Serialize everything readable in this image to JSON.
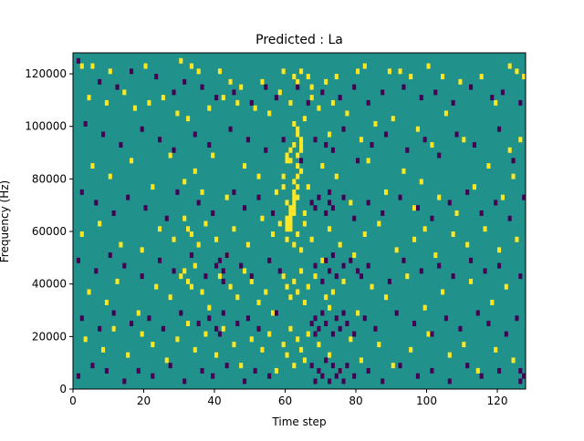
{
  "chart_data": {
    "type": "heatmap",
    "title": "Predicted : La",
    "xlabel": "Time step",
    "ylabel": "Frequency (Hz)",
    "xlim": [
      0,
      128
    ],
    "ylim": [
      0,
      128000
    ],
    "x_ticks": [
      0,
      20,
      40,
      60,
      80,
      100,
      120
    ],
    "y_ticks": [
      0,
      20000,
      40000,
      60000,
      80000,
      100000,
      120000
    ],
    "rows": 64,
    "cols": 128,
    "value_levels": [
      -1,
      0,
      1
    ],
    "colormap": {
      "-1": "#440154",
      "0": "#21918c",
      "1": "#fde725"
    },
    "background_value": 0,
    "note_cells": "cells listed as [time_step, row_index] where row 0 is the lowest frequency band",
    "positive_cells": [
      [
        2,
        61
      ],
      [
        5,
        61
      ],
      [
        10,
        60
      ],
      [
        20,
        61
      ],
      [
        30,
        62
      ],
      [
        33,
        61
      ],
      [
        35,
        60
      ],
      [
        41,
        60
      ],
      [
        44,
        58
      ],
      [
        47,
        57
      ],
      [
        53,
        58
      ],
      [
        59,
        60
      ],
      [
        62,
        59
      ],
      [
        63,
        58
      ],
      [
        64,
        60
      ],
      [
        66,
        59
      ],
      [
        67,
        57
      ],
      [
        71,
        58
      ],
      [
        74,
        59
      ],
      [
        80,
        60
      ],
      [
        82,
        61
      ],
      [
        89,
        60
      ],
      [
        92,
        60
      ],
      [
        95,
        59
      ],
      [
        100,
        61
      ],
      [
        104,
        59
      ],
      [
        109,
        58
      ],
      [
        115,
        59
      ],
      [
        123,
        61
      ],
      [
        125,
        60
      ],
      [
        127,
        59
      ],
      [
        4,
        55
      ],
      [
        9,
        54
      ],
      [
        14,
        56
      ],
      [
        17,
        53
      ],
      [
        21,
        54
      ],
      [
        25,
        55
      ],
      [
        29,
        52
      ],
      [
        32,
        51
      ],
      [
        38,
        53
      ],
      [
        42,
        55
      ],
      [
        46,
        54
      ],
      [
        51,
        53
      ],
      [
        55,
        52
      ],
      [
        58,
        56
      ],
      [
        61,
        54
      ],
      [
        62,
        50
      ],
      [
        63,
        49
      ],
      [
        65,
        51
      ],
      [
        67,
        55
      ],
      [
        69,
        53
      ],
      [
        72,
        48
      ],
      [
        73,
        54
      ],
      [
        77,
        52
      ],
      [
        81,
        47
      ],
      [
        85,
        50
      ],
      [
        90,
        51
      ],
      [
        97,
        49
      ],
      [
        101,
        46
      ],
      [
        105,
        52
      ],
      [
        110,
        47
      ],
      [
        119,
        54
      ],
      [
        123,
        45
      ],
      [
        126,
        47
      ],
      [
        5,
        42
      ],
      [
        10,
        40
      ],
      [
        16,
        43
      ],
      [
        22,
        38
      ],
      [
        27,
        44
      ],
      [
        31,
        39
      ],
      [
        34,
        41
      ],
      [
        36,
        37
      ],
      [
        39,
        44
      ],
      [
        43,
        36
      ],
      [
        48,
        42
      ],
      [
        52,
        40
      ],
      [
        57,
        37
      ],
      [
        60,
        35
      ],
      [
        61,
        43
      ],
      [
        62,
        39
      ],
      [
        63,
        36
      ],
      [
        64,
        41
      ],
      [
        65,
        33
      ],
      [
        66,
        38
      ],
      [
        70,
        42
      ],
      [
        74,
        40
      ],
      [
        78,
        35
      ],
      [
        83,
        43
      ],
      [
        88,
        37
      ],
      [
        93,
        41
      ],
      [
        96,
        34
      ],
      [
        98,
        39
      ],
      [
        103,
        36
      ],
      [
        108,
        33
      ],
      [
        113,
        38
      ],
      [
        117,
        42
      ],
      [
        121,
        36
      ],
      [
        124,
        40
      ],
      [
        2,
        29
      ],
      [
        7,
        31
      ],
      [
        13,
        27
      ],
      [
        19,
        26
      ],
      [
        24,
        30
      ],
      [
        28,
        28
      ],
      [
        31,
        32
      ],
      [
        32,
        30
      ],
      [
        33,
        29
      ],
      [
        35,
        27
      ],
      [
        37,
        31
      ],
      [
        40,
        28
      ],
      [
        43,
        25
      ],
      [
        45,
        30
      ],
      [
        49,
        27
      ],
      [
        53,
        32
      ],
      [
        56,
        29
      ],
      [
        58,
        31
      ],
      [
        60,
        28
      ],
      [
        61,
        30
      ],
      [
        62,
        27
      ],
      [
        63,
        29
      ],
      [
        64,
        26
      ],
      [
        65,
        31
      ],
      [
        67,
        28
      ],
      [
        70,
        24
      ],
      [
        72,
        30
      ],
      [
        75,
        27
      ],
      [
        79,
        25
      ],
      [
        82,
        29
      ],
      [
        86,
        31
      ],
      [
        91,
        26
      ],
      [
        96,
        28
      ],
      [
        99,
        30
      ],
      [
        102,
        25
      ],
      [
        107,
        29
      ],
      [
        111,
        27
      ],
      [
        116,
        30
      ],
      [
        120,
        26
      ],
      [
        125,
        28
      ],
      [
        4,
        18
      ],
      [
        9,
        16
      ],
      [
        12,
        20
      ],
      [
        18,
        14
      ],
      [
        23,
        19
      ],
      [
        27,
        17
      ],
      [
        30,
        21
      ],
      [
        31,
        22
      ],
      [
        32,
        20
      ],
      [
        33,
        19
      ],
      [
        34,
        23
      ],
      [
        36,
        18
      ],
      [
        38,
        15
      ],
      [
        41,
        21
      ],
      [
        44,
        19
      ],
      [
        46,
        17
      ],
      [
        48,
        22
      ],
      [
        50,
        20
      ],
      [
        52,
        16
      ],
      [
        54,
        18
      ],
      [
        56,
        14
      ],
      [
        59,
        21
      ],
      [
        60,
        19
      ],
      [
        61,
        17
      ],
      [
        62,
        20
      ],
      [
        63,
        18
      ],
      [
        64,
        22
      ],
      [
        65,
        16
      ],
      [
        66,
        19
      ],
      [
        68,
        21
      ],
      [
        71,
        17
      ],
      [
        72,
        15
      ],
      [
        73,
        18
      ],
      [
        76,
        20
      ],
      [
        80,
        14
      ],
      [
        84,
        19
      ],
      [
        88,
        17
      ],
      [
        94,
        21
      ],
      [
        99,
        15
      ],
      [
        104,
        18
      ],
      [
        112,
        20
      ],
      [
        118,
        16
      ],
      [
        122,
        19
      ],
      [
        3,
        9
      ],
      [
        8,
        7
      ],
      [
        11,
        11
      ],
      [
        15,
        6
      ],
      [
        19,
        10
      ],
      [
        22,
        8
      ],
      [
        26,
        5
      ],
      [
        29,
        9
      ],
      [
        32,
        12
      ],
      [
        34,
        7
      ],
      [
        37,
        10
      ],
      [
        40,
        6
      ],
      [
        42,
        11
      ],
      [
        45,
        8
      ],
      [
        47,
        4
      ],
      [
        50,
        9
      ],
      [
        53,
        7
      ],
      [
        55,
        10
      ],
      [
        57,
        3
      ],
      [
        59,
        8
      ],
      [
        60,
        6
      ],
      [
        61,
        11
      ],
      [
        62,
        4
      ],
      [
        63,
        9
      ],
      [
        64,
        7
      ],
      [
        65,
        5
      ],
      [
        66,
        10
      ],
      [
        69,
        8
      ],
      [
        72,
        6
      ],
      [
        75,
        3
      ],
      [
        78,
        9
      ],
      [
        81,
        5
      ],
      [
        86,
        8
      ],
      [
        90,
        4
      ],
      [
        95,
        7
      ],
      [
        100,
        10
      ],
      [
        106,
        6
      ],
      [
        110,
        8
      ],
      [
        114,
        3
      ],
      [
        119,
        7
      ],
      [
        124,
        5
      ],
      [
        60,
        30
      ],
      [
        60,
        31
      ],
      [
        60,
        32
      ],
      [
        61,
        31
      ],
      [
        61,
        32
      ],
      [
        61,
        33
      ],
      [
        61,
        34
      ],
      [
        62,
        33
      ],
      [
        62,
        34
      ],
      [
        62,
        35
      ],
      [
        62,
        36
      ],
      [
        62,
        37
      ],
      [
        63,
        38
      ],
      [
        63,
        40
      ],
      [
        63,
        42
      ],
      [
        63,
        44
      ],
      [
        64,
        45
      ],
      [
        64,
        46
      ],
      [
        64,
        47
      ],
      [
        63,
        48
      ],
      [
        62,
        46
      ],
      [
        61,
        45
      ],
      [
        60,
        44
      ],
      [
        60,
        43
      ],
      [
        59,
        40
      ],
      [
        59,
        38
      ]
    ],
    "negative_cells": [
      [
        1,
        62
      ],
      [
        7,
        58
      ],
      [
        12,
        57
      ],
      [
        16,
        60
      ],
      [
        23,
        59
      ],
      [
        28,
        56
      ],
      [
        31,
        58
      ],
      [
        36,
        57
      ],
      [
        40,
        55
      ],
      [
        45,
        56
      ],
      [
        50,
        54
      ],
      [
        54,
        57
      ],
      [
        57,
        55
      ],
      [
        63,
        57
      ],
      [
        66,
        54
      ],
      [
        70,
        56
      ],
      [
        75,
        55
      ],
      [
        79,
        57
      ],
      [
        83,
        54
      ],
      [
        87,
        56
      ],
      [
        93,
        57
      ],
      [
        98,
        55
      ],
      [
        102,
        56
      ],
      [
        107,
        54
      ],
      [
        112,
        57
      ],
      [
        118,
        55
      ],
      [
        121,
        56
      ],
      [
        126,
        54
      ],
      [
        3,
        50
      ],
      [
        8,
        48
      ],
      [
        13,
        46
      ],
      [
        19,
        49
      ],
      [
        24,
        47
      ],
      [
        28,
        45
      ],
      [
        34,
        48
      ],
      [
        38,
        46
      ],
      [
        44,
        49
      ],
      [
        49,
        47
      ],
      [
        54,
        45
      ],
      [
        59,
        47
      ],
      [
        64,
        43
      ],
      [
        68,
        47
      ],
      [
        71,
        46
      ],
      [
        73,
        45
      ],
      [
        76,
        49
      ],
      [
        80,
        43
      ],
      [
        84,
        46
      ],
      [
        88,
        48
      ],
      [
        94,
        45
      ],
      [
        99,
        47
      ],
      [
        103,
        44
      ],
      [
        108,
        48
      ],
      [
        113,
        46
      ],
      [
        120,
        49
      ],
      [
        124,
        43
      ],
      [
        2,
        37
      ],
      [
        6,
        35
      ],
      [
        11,
        33
      ],
      [
        15,
        36
      ],
      [
        20,
        34
      ],
      [
        26,
        32
      ],
      [
        29,
        37
      ],
      [
        35,
        35
      ],
      [
        39,
        33
      ],
      [
        45,
        37
      ],
      [
        48,
        34
      ],
      [
        52,
        36
      ],
      [
        56,
        33
      ],
      [
        67,
        35
      ],
      [
        68,
        34
      ],
      [
        69,
        36
      ],
      [
        71,
        33
      ],
      [
        72,
        35
      ],
      [
        72,
        37
      ],
      [
        73,
        34
      ],
      [
        76,
        36
      ],
      [
        79,
        32
      ],
      [
        83,
        35
      ],
      [
        87,
        33
      ],
      [
        92,
        36
      ],
      [
        97,
        34
      ],
      [
        101,
        32
      ],
      [
        106,
        35
      ],
      [
        111,
        37
      ],
      [
        115,
        33
      ],
      [
        119,
        35
      ],
      [
        123,
        32
      ],
      [
        127,
        36
      ],
      [
        1,
        24
      ],
      [
        6,
        22
      ],
      [
        10,
        25
      ],
      [
        14,
        23
      ],
      [
        19,
        21
      ],
      [
        24,
        24
      ],
      [
        28,
        22
      ],
      [
        33,
        25
      ],
      [
        37,
        21
      ],
      [
        40,
        23
      ],
      [
        41,
        24
      ],
      [
        42,
        22
      ],
      [
        42,
        20
      ],
      [
        43,
        25
      ],
      [
        47,
        23
      ],
      [
        50,
        21
      ],
      [
        55,
        24
      ],
      [
        58,
        22
      ],
      [
        68,
        23
      ],
      [
        70,
        20
      ],
      [
        71,
        24
      ],
      [
        72,
        22
      ],
      [
        73,
        25
      ],
      [
        74,
        21
      ],
      [
        76,
        23
      ],
      [
        78,
        24
      ],
      [
        80,
        22
      ],
      [
        81,
        21
      ],
      [
        83,
        23
      ],
      [
        89,
        20
      ],
      [
        93,
        24
      ],
      [
        98,
        22
      ],
      [
        103,
        23
      ],
      [
        107,
        21
      ],
      [
        112,
        24
      ],
      [
        116,
        22
      ],
      [
        120,
        23
      ],
      [
        126,
        21
      ],
      [
        2,
        13
      ],
      [
        7,
        11
      ],
      [
        11,
        14
      ],
      [
        16,
        12
      ],
      [
        21,
        13
      ],
      [
        25,
        11
      ],
      [
        30,
        14
      ],
      [
        35,
        12
      ],
      [
        38,
        13
      ],
      [
        40,
        11
      ],
      [
        41,
        10
      ],
      [
        42,
        14
      ],
      [
        46,
        12
      ],
      [
        49,
        13
      ],
      [
        52,
        11
      ],
      [
        57,
        14
      ],
      [
        67,
        12
      ],
      [
        68,
        10
      ],
      [
        68,
        13
      ],
      [
        69,
        11
      ],
      [
        70,
        14
      ],
      [
        71,
        12
      ],
      [
        73,
        10
      ],
      [
        74,
        13
      ],
      [
        75,
        11
      ],
      [
        76,
        14
      ],
      [
        77,
        12
      ],
      [
        79,
        10
      ],
      [
        82,
        13
      ],
      [
        85,
        11
      ],
      [
        91,
        14
      ],
      [
        96,
        12
      ],
      [
        101,
        10
      ],
      [
        105,
        13
      ],
      [
        109,
        11
      ],
      [
        114,
        14
      ],
      [
        117,
        12
      ],
      [
        122,
        10
      ],
      [
        125,
        13
      ],
      [
        1,
        2
      ],
      [
        5,
        4
      ],
      [
        9,
        3
      ],
      [
        14,
        1
      ],
      [
        18,
        3
      ],
      [
        22,
        2
      ],
      [
        27,
        4
      ],
      [
        31,
        1
      ],
      [
        36,
        3
      ],
      [
        39,
        2
      ],
      [
        43,
        4
      ],
      [
        48,
        1
      ],
      [
        51,
        3
      ],
      [
        55,
        2
      ],
      [
        67,
        4
      ],
      [
        68,
        1
      ],
      [
        69,
        3
      ],
      [
        70,
        2
      ],
      [
        71,
        5
      ],
      [
        72,
        1
      ],
      [
        73,
        4
      ],
      [
        74,
        2
      ],
      [
        75,
        3
      ],
      [
        76,
        1
      ],
      [
        77,
        4
      ],
      [
        79,
        2
      ],
      [
        83,
        3
      ],
      [
        87,
        1
      ],
      [
        92,
        4
      ],
      [
        97,
        2
      ],
      [
        101,
        3
      ],
      [
        106,
        1
      ],
      [
        111,
        4
      ],
      [
        115,
        2
      ],
      [
        120,
        3
      ],
      [
        126,
        1
      ],
      [
        127,
        2
      ],
      [
        126,
        3
      ]
    ]
  }
}
